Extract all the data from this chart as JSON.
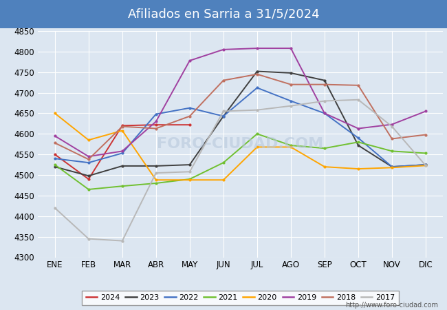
{
  "title": "Afiliados en Sarria a 31/5/2024",
  "title_bg_color": "#4f81bd",
  "title_text_color": "white",
  "ylim": [
    4300,
    4850
  ],
  "yticks": [
    4300,
    4350,
    4400,
    4450,
    4500,
    4550,
    4600,
    4650,
    4700,
    4750,
    4800,
    4850
  ],
  "months": [
    "ENE",
    "FEB",
    "MAR",
    "ABR",
    "MAY",
    "JUN",
    "JUL",
    "AGO",
    "SEP",
    "OCT",
    "NOV",
    "DIC"
  ],
  "series": {
    "2024": {
      "color": "#cc3333",
      "data": [
        4550,
        4490,
        4620,
        4622,
        4622,
        null,
        null,
        null,
        null,
        null,
        null,
        null
      ]
    },
    "2023": {
      "color": "#404040",
      "data": [
        4520,
        4498,
        4522,
        4522,
        4525,
        4643,
        4752,
        4748,
        4730,
        4572,
        4520,
        4525
      ]
    },
    "2022": {
      "color": "#4472c4",
      "data": [
        4540,
        4530,
        4553,
        4648,
        4663,
        4643,
        4712,
        4680,
        4650,
        4590,
        4520,
        4525
      ]
    },
    "2021": {
      "color": "#70c030",
      "data": [
        4525,
        4465,
        4473,
        4480,
        4490,
        4530,
        4600,
        4572,
        4565,
        4580,
        4558,
        4553
      ]
    },
    "2020": {
      "color": "#ffa500",
      "data": [
        4650,
        4585,
        4608,
        4488,
        4488,
        4488,
        4568,
        4568,
        4520,
        4515,
        4518,
        4523
      ]
    },
    "2019": {
      "color": "#a040a0",
      "data": [
        4595,
        4545,
        4558,
        4630,
        4778,
        4805,
        4808,
        4808,
        4650,
        4613,
        4623,
        4655
      ]
    },
    "2018": {
      "color": "#c07060",
      "data": [
        4578,
        4538,
        4618,
        4613,
        4643,
        4730,
        4745,
        4720,
        4720,
        4718,
        4588,
        4598
      ]
    },
    "2017": {
      "color": "#b8b8b8",
      "data": [
        4420,
        4345,
        4340,
        4505,
        4508,
        4655,
        4658,
        4668,
        4680,
        4683,
        4618,
        4523
      ]
    }
  },
  "legend_order": [
    "2024",
    "2023",
    "2022",
    "2021",
    "2020",
    "2019",
    "2018",
    "2017"
  ],
  "bg_color": "#dce6f1",
  "plot_bg_color": "#dce6f1",
  "grid_color": "white",
  "footer_url": "http://www.foro-ciudad.com"
}
